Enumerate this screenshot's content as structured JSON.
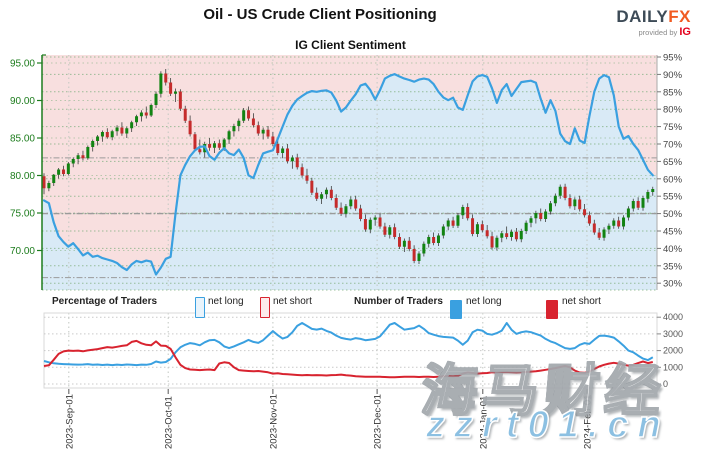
{
  "header": {
    "title": "Oil - US Crude Client Positioning",
    "subtitle": "IG Client Sentiment",
    "logo": {
      "daily": "DAILY",
      "fx": "FX",
      "provided_by": "provided by",
      "ig": "IG"
    }
  },
  "legend": {
    "pct_label": "Percentage of Traders",
    "num_label": "Number of Traders",
    "net_long": "net long",
    "net_short": "net short"
  },
  "watermark": {
    "cn": "海马财经",
    "url": "zzrt01.cn"
  },
  "colors": {
    "accent_blue": "#3aa0e0",
    "accent_red": "#d8232f",
    "fill_long": "#d9eaf6",
    "fill_short": "#f8dfdf",
    "candle_up": "#128312",
    "candle_down": "#c52b2b",
    "wick": "#3d3d3d",
    "axis_green": "#1e7d1e",
    "grid_green": "#84b284",
    "grid_gray": "#9a9a9a",
    "month_grid": "#c2c8c2",
    "count_blue": "#3aa0e0",
    "count_red": "#d8232f",
    "logo_daily": "#3d4b57",
    "logo_fx": "#f15b22",
    "logo_ig": "#e4001b",
    "watermark_blue": "#8cc0e2"
  },
  "chart_data": [
    {
      "type": "candlestick+line",
      "title": "IG Client Sentiment",
      "price_axis": {
        "side": "left",
        "ticks": [
          95,
          90,
          85,
          80,
          75,
          70
        ],
        "format": "2dp"
      },
      "pct_axis": {
        "side": "right",
        "ticks": [
          95,
          90,
          85,
          80,
          75,
          70,
          65,
          60,
          55,
          50,
          45,
          40,
          35,
          30
        ],
        "suffix": "%"
      },
      "month_ticks": [
        {
          "label": "2023-Sep-01",
          "i": 5.1
        },
        {
          "label": "2023-Oct-01",
          "i": 25.5
        },
        {
          "label": "2023-Nov-01",
          "i": 47
        },
        {
          "label": "2023-Dec-01",
          "i": 68.4
        },
        {
          "label": "2024-Jan-01",
          "i": 90.1
        },
        {
          "label": "2024-Feb-01",
          "i": 111.5
        }
      ],
      "reference_lines_pct": [
        66,
        50,
        31.6
      ],
      "sentiment_net_long_pct": [
        53.8,
        53,
        47.5,
        43.5,
        41.8,
        40.5,
        41.5,
        39.8,
        38,
        38.8,
        37.6,
        37.9,
        37.2,
        36.8,
        36.4,
        35.8,
        34.6,
        33.8,
        35.4,
        36.4,
        36,
        36.5,
        36.2,
        32.5,
        34.5,
        37,
        37.6,
        50,
        61,
        64,
        66.5,
        68.2,
        69.2,
        69.3,
        66.5,
        65.5,
        67.5,
        68.8,
        67.3,
        66.8,
        68.4,
        66,
        61,
        60.2,
        64,
        67.3,
        67.8,
        68.2,
        71.5,
        75,
        78.5,
        81,
        82.8,
        83.8,
        84.7,
        85.2,
        85,
        85.3,
        85.4,
        84.8,
        82.5,
        79.3,
        80.5,
        82.5,
        84.3,
        86.8,
        87.3,
        85.5,
        82.8,
        85.5,
        88.8,
        89.6,
        90.1,
        89.4,
        88.8,
        88.4,
        87.9,
        88.5,
        88.8,
        88.5,
        87.2,
        85,
        83.4,
        82.6,
        83.3,
        80.5,
        79.8,
        84,
        88,
        89.4,
        89.8,
        89.3,
        86,
        81.8,
        85.5,
        87.2,
        83.8,
        85.8,
        87.8,
        88,
        88.2,
        87.6,
        83,
        79,
        82.6,
        79.5,
        73,
        70.8,
        70,
        74.5,
        71,
        70.3,
        78,
        85,
        88.8,
        89.8,
        89.2,
        84,
        75,
        71.5,
        72.3,
        70,
        68.3,
        65.5,
        62.6,
        61
      ],
      "candles_ohlc": [
        [
          79.9,
          80.3,
          77.5,
          78.3
        ],
        [
          78.3,
          79.3,
          77.9,
          79.0
        ],
        [
          79.0,
          80.2,
          78.6,
          80.1
        ],
        [
          80.1,
          81.0,
          79.6,
          80.8
        ],
        [
          80.8,
          81.3,
          79.9,
          80.2
        ],
        [
          80.2,
          81.8,
          80.0,
          81.6
        ],
        [
          81.6,
          82.4,
          81.1,
          82.2
        ],
        [
          82.2,
          83.0,
          81.5,
          82.7
        ],
        [
          82.7,
          83.3,
          82.0,
          82.3
        ],
        [
          82.3,
          84.0,
          82.1,
          83.8
        ],
        [
          83.8,
          84.8,
          83.2,
          84.6
        ],
        [
          84.6,
          85.4,
          84.0,
          85.2
        ],
        [
          85.2,
          86.0,
          84.5,
          85.8
        ],
        [
          85.8,
          86.3,
          84.9,
          85.1
        ],
        [
          85.1,
          86.1,
          84.7,
          85.9
        ],
        [
          85.9,
          86.7,
          85.3,
          86.4
        ],
        [
          86.4,
          87.1,
          85.3,
          85.6
        ],
        [
          85.6,
          86.5,
          85.0,
          86.3
        ],
        [
          86.3,
          87.3,
          85.8,
          87.1
        ],
        [
          87.1,
          88.1,
          86.6,
          87.9
        ],
        [
          87.9,
          88.7,
          87.2,
          88.4
        ],
        [
          88.4,
          89.2,
          87.6,
          88.0
        ],
        [
          88.0,
          89.6,
          87.8,
          89.4
        ],
        [
          89.4,
          91.2,
          89.0,
          90.9
        ],
        [
          90.9,
          93.9,
          90.4,
          93.6
        ],
        [
          93.6,
          94.2,
          92.0,
          92.4
        ],
        [
          92.4,
          93.0,
          90.6,
          90.9
        ],
        [
          90.9,
          91.6,
          89.8,
          91.2
        ],
        [
          91.2,
          91.5,
          88.6,
          88.9
        ],
        [
          88.9,
          89.3,
          87.0,
          87.3
        ],
        [
          87.3,
          88.0,
          85.2,
          85.5
        ],
        [
          85.5,
          85.8,
          83.2,
          83.5
        ],
        [
          83.5,
          84.8,
          82.8,
          83.1
        ],
        [
          83.1,
          84.5,
          82.4,
          84.2
        ],
        [
          84.2,
          85.0,
          83.3,
          83.7
        ],
        [
          83.7,
          84.6,
          83.0,
          84.3
        ],
        [
          84.3,
          84.8,
          83.4,
          83.7
        ],
        [
          83.7,
          85.0,
          83.3,
          84.8
        ],
        [
          84.8,
          86.1,
          84.2,
          85.9
        ],
        [
          85.9,
          86.9,
          85.2,
          86.6
        ],
        [
          86.6,
          87.6,
          85.9,
          87.3
        ],
        [
          87.3,
          89.0,
          87.0,
          88.7
        ],
        [
          88.7,
          89.2,
          87.3,
          87.6
        ],
        [
          87.6,
          88.3,
          86.4,
          86.7
        ],
        [
          86.7,
          87.2,
          85.3,
          85.6
        ],
        [
          85.6,
          86.4,
          84.8,
          86.1
        ],
        [
          86.1,
          86.6,
          84.9,
          85.2
        ],
        [
          85.2,
          85.8,
          83.9,
          84.2
        ],
        [
          84.2,
          84.7,
          82.7,
          83.0
        ],
        [
          83.0,
          83.9,
          82.3,
          83.6
        ],
        [
          83.6,
          84.2,
          81.6,
          81.9
        ],
        [
          81.9,
          82.7,
          80.9,
          82.4
        ],
        [
          82.4,
          82.9,
          80.8,
          81.1
        ],
        [
          81.1,
          81.6,
          79.7,
          80.0
        ],
        [
          80.0,
          80.9,
          78.9,
          79.3
        ],
        [
          79.3,
          79.7,
          77.4,
          77.7
        ],
        [
          77.7,
          78.4,
          76.6,
          76.9
        ],
        [
          76.9,
          77.8,
          76.2,
          77.5
        ],
        [
          77.5,
          78.4,
          76.9,
          78.1
        ],
        [
          78.1,
          78.6,
          76.7,
          77.0
        ],
        [
          77.0,
          77.5,
          75.4,
          75.7
        ],
        [
          75.7,
          76.4,
          74.6,
          74.9
        ],
        [
          74.9,
          76.2,
          74.4,
          75.9
        ],
        [
          75.9,
          77.2,
          75.5,
          76.8
        ],
        [
          76.8,
          77.3,
          75.3,
          75.6
        ],
        [
          75.6,
          76.1,
          73.9,
          74.2
        ],
        [
          74.2,
          74.8,
          72.5,
          72.8
        ],
        [
          72.8,
          74.4,
          72.3,
          74.1
        ],
        [
          74.1,
          74.7,
          73.3,
          74.4
        ],
        [
          74.4,
          74.9,
          72.9,
          73.2
        ],
        [
          73.2,
          73.7,
          71.8,
          72.1
        ],
        [
          72.1,
          73.4,
          71.6,
          73.1
        ],
        [
          73.1,
          73.6,
          71.5,
          71.8
        ],
        [
          71.8,
          72.3,
          70.2,
          70.5
        ],
        [
          70.5,
          71.6,
          69.8,
          71.3
        ],
        [
          71.3,
          71.8,
          69.9,
          70.2
        ],
        [
          70.2,
          70.7,
          68.3,
          68.6
        ],
        [
          68.6,
          69.9,
          68.2,
          69.6
        ],
        [
          69.6,
          71.2,
          69.2,
          70.9
        ],
        [
          70.9,
          72.1,
          70.4,
          71.8
        ],
        [
          71.8,
          72.4,
          70.7,
          71.0
        ],
        [
          71.0,
          72.3,
          70.6,
          72.0
        ],
        [
          72.0,
          73.5,
          71.6,
          73.2
        ],
        [
          73.2,
          74.3,
          72.7,
          74.0
        ],
        [
          74.0,
          74.5,
          73.0,
          73.3
        ],
        [
          73.3,
          75.0,
          73.0,
          74.7
        ],
        [
          74.7,
          76.1,
          74.2,
          75.8
        ],
        [
          75.8,
          76.3,
          74.0,
          74.3
        ],
        [
          74.3,
          74.8,
          71.9,
          72.2
        ],
        [
          72.2,
          73.8,
          71.8,
          73.5
        ],
        [
          73.5,
          74.0,
          72.4,
          72.7
        ],
        [
          72.7,
          73.4,
          71.6,
          71.9
        ],
        [
          71.9,
          72.5,
          70.1,
          70.4
        ],
        [
          70.4,
          72.0,
          70.0,
          71.7
        ],
        [
          71.7,
          72.6,
          71.1,
          72.3
        ],
        [
          72.3,
          73.2,
          71.5,
          71.8
        ],
        [
          71.8,
          72.8,
          71.3,
          72.5
        ],
        [
          72.5,
          73.0,
          71.2,
          71.5
        ],
        [
          71.5,
          72.9,
          71.1,
          72.6
        ],
        [
          72.6,
          74.0,
          72.2,
          73.7
        ],
        [
          73.7,
          74.6,
          73.1,
          74.3
        ],
        [
          74.3,
          75.3,
          73.6,
          75.0
        ],
        [
          75.0,
          75.6,
          73.9,
          74.2
        ],
        [
          74.2,
          75.5,
          73.8,
          75.2
        ],
        [
          75.2,
          76.6,
          74.8,
          76.3
        ],
        [
          76.3,
          77.6,
          75.9,
          77.3
        ],
        [
          77.3,
          78.8,
          76.9,
          78.5
        ],
        [
          78.5,
          78.9,
          76.7,
          77.0
        ],
        [
          77.0,
          77.5,
          75.6,
          75.9
        ],
        [
          75.9,
          77.1,
          75.4,
          76.8
        ],
        [
          76.8,
          77.3,
          75.2,
          75.5
        ],
        [
          75.5,
          76.2,
          74.4,
          74.7
        ],
        [
          74.7,
          75.2,
          73.3,
          73.6
        ],
        [
          73.6,
          74.1,
          72.1,
          72.4
        ],
        [
          72.4,
          73.0,
          71.4,
          71.7
        ],
        [
          71.7,
          73.1,
          71.3,
          72.8
        ],
        [
          72.8,
          73.6,
          72.2,
          73.3
        ],
        [
          73.3,
          74.3,
          72.9,
          74.0
        ],
        [
          74.0,
          74.5,
          72.9,
          73.2
        ],
        [
          73.2,
          74.7,
          72.8,
          74.4
        ],
        [
          74.4,
          75.9,
          74.0,
          75.6
        ],
        [
          75.6,
          76.9,
          75.2,
          76.6
        ],
        [
          76.6,
          77.1,
          75.4,
          75.7
        ],
        [
          75.7,
          77.3,
          75.3,
          77.0
        ],
        [
          76.9,
          78.1,
          76.4,
          77.8
        ],
        [
          77.8,
          78.5,
          77.3,
          78.2
        ]
      ]
    },
    {
      "type": "line",
      "count_axis": {
        "side": "right",
        "ticks": [
          4000,
          3000,
          2000,
          1000,
          0
        ]
      },
      "series": [
        {
          "name": "net long",
          "values": [
            1380,
            1300,
            1240,
            1210,
            1190,
            1180,
            1170,
            1160,
            1165,
            1190,
            1150,
            1170,
            1140,
            1160,
            1130,
            1160,
            1140,
            1170,
            1150,
            1130,
            1160,
            1150,
            1200,
            1350,
            1280,
            1320,
            1500,
            1900,
            2200,
            2350,
            2450,
            2400,
            2320,
            2500,
            2620,
            2640,
            2500,
            2250,
            2150,
            2250,
            2380,
            2500,
            2640,
            2520,
            2460,
            2620,
            2900,
            3170,
            2920,
            2720,
            2820,
            3100,
            3480,
            3650,
            3480,
            3300,
            3260,
            3320,
            3180,
            3080,
            2900,
            2760,
            2700,
            2660,
            2750,
            2700,
            2620,
            2660,
            2700,
            2850,
            3200,
            3550,
            3650,
            3450,
            3250,
            3300,
            3350,
            3500,
            3300,
            3050,
            2950,
            2870,
            2820,
            2800,
            2780,
            2600,
            2350,
            2600,
            3100,
            3250,
            3200,
            3000,
            2950,
            3050,
            3200,
            3650,
            3250,
            3000,
            3100,
            3150,
            3100,
            3000,
            2900,
            2700,
            2550,
            2450,
            2300,
            2150,
            2100,
            2150,
            2350,
            2450,
            2400,
            2650,
            2880,
            2900,
            2850,
            2780,
            2550,
            2300,
            2000,
            1900,
            1700,
            1520,
            1430,
            1600
          ]
        },
        {
          "name": "net short",
          "values": [
            1075,
            1120,
            1450,
            1800,
            1950,
            2000,
            1980,
            2000,
            1960,
            2010,
            2050,
            2090,
            2150,
            2210,
            2180,
            2230,
            2280,
            2320,
            2520,
            2580,
            2440,
            2350,
            2320,
            2550,
            2300,
            2280,
            2100,
            1600,
            1150,
            950,
            870,
            850,
            830,
            850,
            870,
            830,
            1230,
            1300,
            1260,
            1000,
            830,
            800,
            780,
            760,
            780,
            740,
            700,
            620,
            640,
            600,
            580,
            560,
            540,
            520,
            540,
            520,
            530,
            520,
            510,
            530,
            540,
            560,
            520,
            500,
            470,
            450,
            440,
            430,
            440,
            430,
            420,
            410,
            400,
            420,
            430,
            440,
            430,
            420,
            440,
            430,
            420,
            440,
            460,
            480,
            470,
            490,
            620,
            700,
            660,
            620,
            640,
            660,
            700,
            680,
            700,
            720,
            700,
            690,
            700,
            720,
            740,
            760,
            800,
            850,
            900,
            950,
            1020,
            1075,
            1000,
            800,
            690,
            670,
            750,
            900,
            1050,
            1150,
            1220,
            1270,
            1220,
            1150,
            1100,
            1150,
            1250,
            1350,
            1250,
            1320
          ]
        }
      ]
    }
  ]
}
